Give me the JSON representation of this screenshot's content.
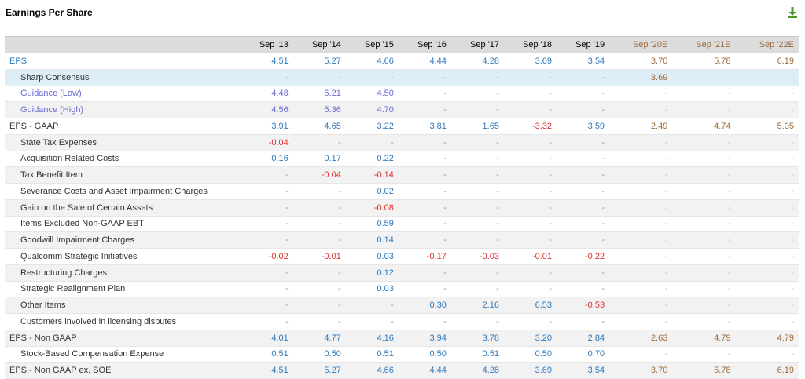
{
  "title": "Earnings Per Share",
  "icons": {
    "download": "download-icon"
  },
  "colors": {
    "positive": "#2f78b9",
    "negative": "#e03030",
    "estimate": "#9b6a3b",
    "guidance": "#6a6ad8"
  },
  "columns": [
    {
      "label": "Sep '13",
      "estimate": false
    },
    {
      "label": "Sep '14",
      "estimate": false
    },
    {
      "label": "Sep '15",
      "estimate": false
    },
    {
      "label": "Sep '16",
      "estimate": false
    },
    {
      "label": "Sep '17",
      "estimate": false
    },
    {
      "label": "Sep '18",
      "estimate": false
    },
    {
      "label": "Sep '19",
      "estimate": false
    },
    {
      "label": "Sep '20E",
      "estimate": true
    },
    {
      "label": "Sep '21E",
      "estimate": true
    },
    {
      "label": "Sep '22E",
      "estimate": true
    }
  ],
  "rows": [
    {
      "name": "eps",
      "label": "EPS",
      "type": "eps",
      "values": [
        "4.51",
        "5.27",
        "4.66",
        "4.44",
        "4.28",
        "3.69",
        "3.54",
        "3.70",
        "5.78",
        "6.19"
      ]
    },
    {
      "name": "sharp-consensus",
      "label": "Sharp Consensus",
      "type": "consensus",
      "values": [
        "-",
        "-",
        "-",
        "-",
        "-",
        "-",
        "-",
        "3.69",
        "-",
        "-"
      ]
    },
    {
      "name": "guidance-low",
      "label": "Guidance (Low)",
      "type": "guidance",
      "values": [
        "4.48",
        "5.21",
        "4.50",
        "-",
        "-",
        "-",
        "-",
        "-",
        "-",
        "-"
      ]
    },
    {
      "name": "guidance-high",
      "label": "Guidance (High)",
      "type": "guidance",
      "values": [
        "4.56",
        "5.36",
        "4.70",
        "-",
        "-",
        "-",
        "-",
        "-",
        "-",
        "-"
      ]
    },
    {
      "name": "eps-gaap",
      "label": "EPS - GAAP",
      "type": "head",
      "values": [
        "3.91",
        "4.65",
        "3.22",
        "3.81",
        "1.65",
        "-3.32",
        "3.59",
        "2.49",
        "4.74",
        "5.05"
      ]
    },
    {
      "name": "state-tax-expenses",
      "label": "State Tax Expenses",
      "type": "item",
      "values": [
        "-0.04",
        "-",
        "-",
        "-",
        "-",
        "-",
        "-",
        "-",
        "-",
        "-"
      ]
    },
    {
      "name": "acquisition-related-costs",
      "label": "Acquisition Related Costs",
      "type": "item",
      "values": [
        "0.16",
        "0.17",
        "0.22",
        "-",
        "-",
        "-",
        "-",
        "-",
        "-",
        "-"
      ]
    },
    {
      "name": "tax-benefit-item",
      "label": "Tax Benefit Item",
      "type": "item",
      "values": [
        "-",
        "-0.04",
        "-0.14",
        "-",
        "-",
        "-",
        "-",
        "-",
        "-",
        "-"
      ]
    },
    {
      "name": "severance-costs",
      "label": "Severance Costs and Asset Impairment Charges",
      "type": "item",
      "values": [
        "-",
        "-",
        "0.02",
        "-",
        "-",
        "-",
        "-",
        "-",
        "-",
        "-"
      ]
    },
    {
      "name": "gain-on-sale",
      "label": "Gain on the Sale of Certain Assets",
      "type": "item",
      "values": [
        "-",
        "-",
        "-0.08",
        "-",
        "-",
        "-",
        "-",
        "-",
        "-",
        "-"
      ]
    },
    {
      "name": "items-excluded",
      "label": "Items Excluded Non-GAAP EBT",
      "type": "item",
      "values": [
        "-",
        "-",
        "0.59",
        "-",
        "-",
        "-",
        "-",
        "-",
        "-",
        "-"
      ]
    },
    {
      "name": "goodwill-impairment",
      "label": "Goodwill Impairment Charges",
      "type": "item",
      "values": [
        "-",
        "-",
        "0.14",
        "-",
        "-",
        "-",
        "-",
        "-",
        "-",
        "-"
      ]
    },
    {
      "name": "qualcomm-strategic",
      "label": "Qualcomm Strategic Initiatives",
      "type": "item",
      "values": [
        "-0.02",
        "-0.01",
        "0.03",
        "-0.17",
        "-0.03",
        "-0.01",
        "-0.22",
        "-",
        "-",
        "-"
      ]
    },
    {
      "name": "restructuring-charges",
      "label": "Restructuring Charges",
      "type": "item",
      "values": [
        "-",
        "-",
        "0.12",
        "-",
        "-",
        "-",
        "-",
        "-",
        "-",
        "-"
      ]
    },
    {
      "name": "strategic-realignment",
      "label": "Strategic Realignment Plan",
      "type": "item",
      "values": [
        "-",
        "-",
        "0.03",
        "-",
        "-",
        "-",
        "-",
        "-",
        "-",
        "-"
      ]
    },
    {
      "name": "other-items",
      "label": "Other Items",
      "type": "item",
      "values": [
        "-",
        "-",
        "-",
        "0.30",
        "2.16",
        "6.53",
        "-0.53",
        "-",
        "-",
        "-"
      ]
    },
    {
      "name": "licensing-disputes",
      "label": "Customers involved in licensing disputes",
      "type": "item",
      "values": [
        "-",
        "-",
        "-",
        "-",
        "-",
        "-",
        "-",
        "-",
        "-",
        "-"
      ]
    },
    {
      "name": "eps-non-gaap",
      "label": "EPS - Non GAAP",
      "type": "head",
      "values": [
        "4.01",
        "4.77",
        "4.16",
        "3.94",
        "3.78",
        "3.20",
        "2.84",
        "2.63",
        "4.79",
        "4.79"
      ]
    },
    {
      "name": "stock-based-comp",
      "label": "Stock-Based Compensation Expense",
      "type": "item",
      "values": [
        "0.51",
        "0.50",
        "0.51",
        "0.50",
        "0.51",
        "0.50",
        "0.70",
        "-",
        "-",
        "-"
      ]
    },
    {
      "name": "eps-non-gaap-ex-soe",
      "label": "EPS - Non GAAP ex. SOE",
      "type": "head",
      "values": [
        "4.51",
        "5.27",
        "4.66",
        "4.44",
        "4.28",
        "3.69",
        "3.54",
        "3.70",
        "5.78",
        "6.19"
      ]
    }
  ]
}
